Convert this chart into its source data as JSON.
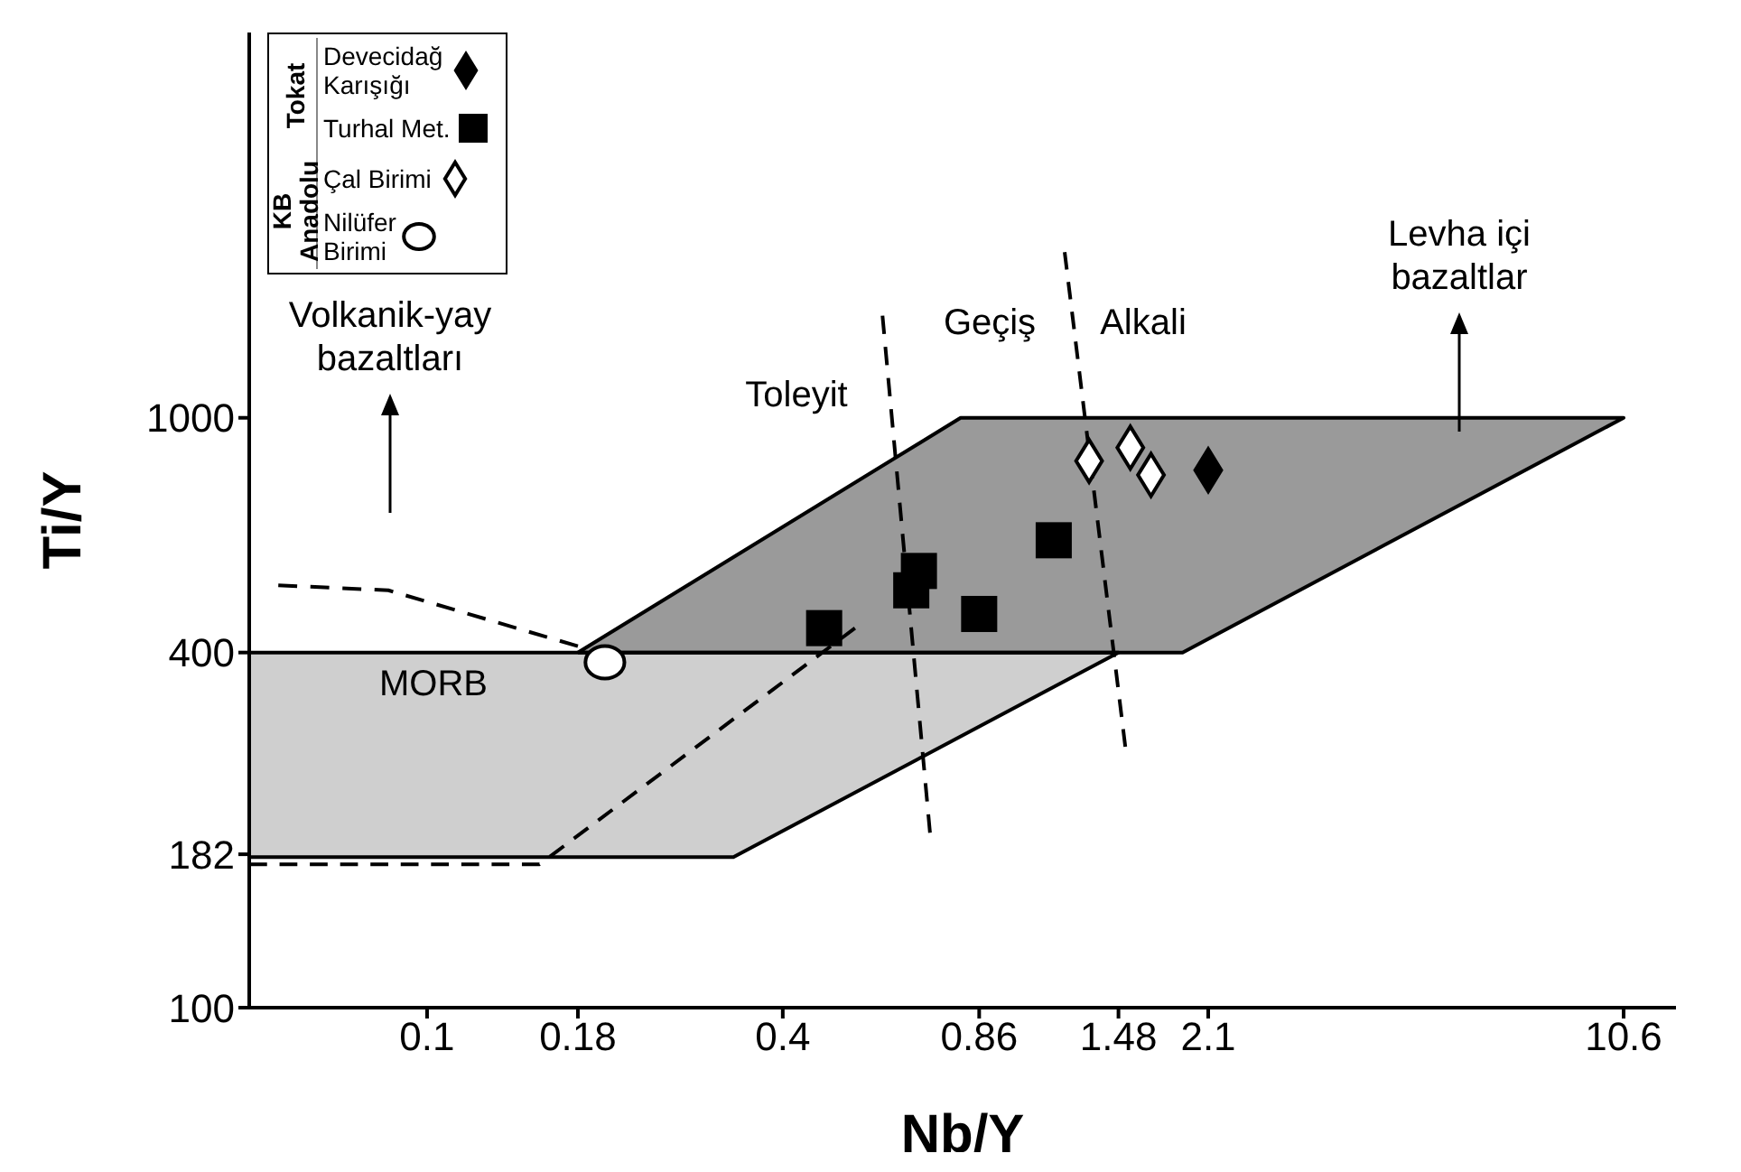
{
  "chart_data": {
    "type": "scatter",
    "xlabel": "Nb/Y",
    "ylabel": "Ti/Y",
    "log": "xy",
    "grid": false,
    "legend": "top left",
    "xlim": [
      0.05,
      13
    ],
    "xticks": [
      0.1,
      0.18,
      0.4,
      0.86,
      1.48,
      2.1,
      10.6
    ],
    "ylim": [
      100,
      4500
    ],
    "yticks": [
      100,
      182,
      400,
      1000
    ],
    "series": [
      {
        "type": "area",
        "color": "#cfcfcf",
        "x": [
          0.05,
          0.05,
          0.33,
          1.48
        ],
        "values": [
          400,
          180,
          180,
          400
        ]
      },
      {
        "type": "area",
        "color": "#9a9a9a",
        "x": [
          0.18,
          0.8,
          10.6,
          1.9
        ],
        "values": [
          400,
          1000,
          1000,
          400
        ]
      },
      {
        "type": "line",
        "line_style": "dashed",
        "color": "#000000",
        "x": [
          0.056,
          0.086,
          0.18
        ],
        "values": [
          520,
          510,
          410
        ]
      },
      {
        "type": "line",
        "line_style": "dashed",
        "color": "#000000",
        "x": [
          0.05,
          0.155,
          0.53
        ],
        "values": [
          175,
          175,
          440
        ]
      },
      {
        "type": "line",
        "line_style": "dashed",
        "color": "#000000",
        "x": [
          0.59,
          0.71
        ],
        "values": [
          1490,
          198
        ]
      },
      {
        "type": "line",
        "line_style": "dashed",
        "color": "#000000",
        "x": [
          1.2,
          1.52
        ],
        "values": [
          1910,
          277
        ]
      },
      {
        "name": "Devecidağ Karışığı",
        "marker": "diamond",
        "color": "#000000",
        "x": [
          2.1
        ],
        "values": [
          815
        ]
      },
      {
        "name": "Turhal Met.",
        "marker": "square",
        "color": "#000000",
        "x": [
          0.47,
          0.66,
          0.68,
          0.86,
          1.15
        ],
        "values": [
          440,
          510,
          550,
          465,
          620
        ]
      },
      {
        "name": "Çal Birimi",
        "marker": "diamond",
        "color": "#ffffff",
        "x": [
          1.32,
          1.55,
          1.68
        ],
        "values": [
          845,
          890,
          800
        ]
      },
      {
        "name": "Nilüfer Birimi",
        "marker": "circle",
        "color": "#ffffff",
        "x": [
          0.2
        ],
        "values": [
          385
        ]
      }
    ],
    "annotations": [
      "Tokat",
      "KB Anadolu",
      "MORB",
      "Volkanik-yay bazaltları",
      "Levha içi bazaltlar",
      "Toleyit",
      "Geçiş",
      "Alkali"
    ]
  }
}
